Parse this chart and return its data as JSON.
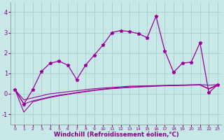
{
  "x": [
    0,
    1,
    2,
    3,
    4,
    5,
    6,
    7,
    8,
    9,
    10,
    11,
    12,
    13,
    14,
    15,
    16,
    17,
    18,
    19,
    20,
    21,
    22,
    23
  ],
  "main_line": [
    0.2,
    -0.5,
    0.2,
    1.1,
    1.5,
    1.6,
    1.4,
    0.7,
    1.4,
    1.9,
    2.4,
    3.0,
    3.1,
    3.05,
    2.95,
    2.75,
    3.8,
    2.1,
    1.05,
    1.5,
    1.55,
    2.5,
    0.05,
    0.45
  ],
  "trend1": [
    0.2,
    -0.3,
    -0.2,
    -0.1,
    0.0,
    0.05,
    0.1,
    0.15,
    0.2,
    0.25,
    0.28,
    0.31,
    0.34,
    0.37,
    0.38,
    0.39,
    0.4,
    0.41,
    0.42,
    0.43,
    0.44,
    0.45,
    0.42,
    0.45
  ],
  "trend2": [
    0.2,
    -0.5,
    -0.35,
    -0.25,
    -0.15,
    -0.07,
    -0.01,
    0.06,
    0.12,
    0.18,
    0.23,
    0.27,
    0.3,
    0.33,
    0.35,
    0.37,
    0.39,
    0.4,
    0.41,
    0.42,
    0.43,
    0.44,
    0.25,
    0.45
  ],
  "trend3": [
    0.2,
    -0.9,
    -0.4,
    -0.28,
    -0.18,
    -0.1,
    -0.03,
    0.04,
    0.1,
    0.16,
    0.21,
    0.25,
    0.28,
    0.31,
    0.33,
    0.35,
    0.37,
    0.39,
    0.4,
    0.41,
    0.42,
    0.43,
    0.23,
    0.42
  ],
  "color": "#990099",
  "bg_color": "#c8e8e8",
  "grid_color": "#aacece",
  "xlabel": "Windchill (Refroidissement éolien,°C)",
  "ylim": [
    -1.5,
    4.5
  ],
  "xlim": [
    -0.5,
    23.5
  ],
  "yticks": [
    -1,
    0,
    1,
    2,
    3,
    4
  ],
  "xticks": [
    0,
    1,
    2,
    3,
    4,
    5,
    6,
    7,
    8,
    9,
    10,
    11,
    12,
    13,
    14,
    15,
    16,
    17,
    18,
    19,
    20,
    21,
    22,
    23
  ]
}
